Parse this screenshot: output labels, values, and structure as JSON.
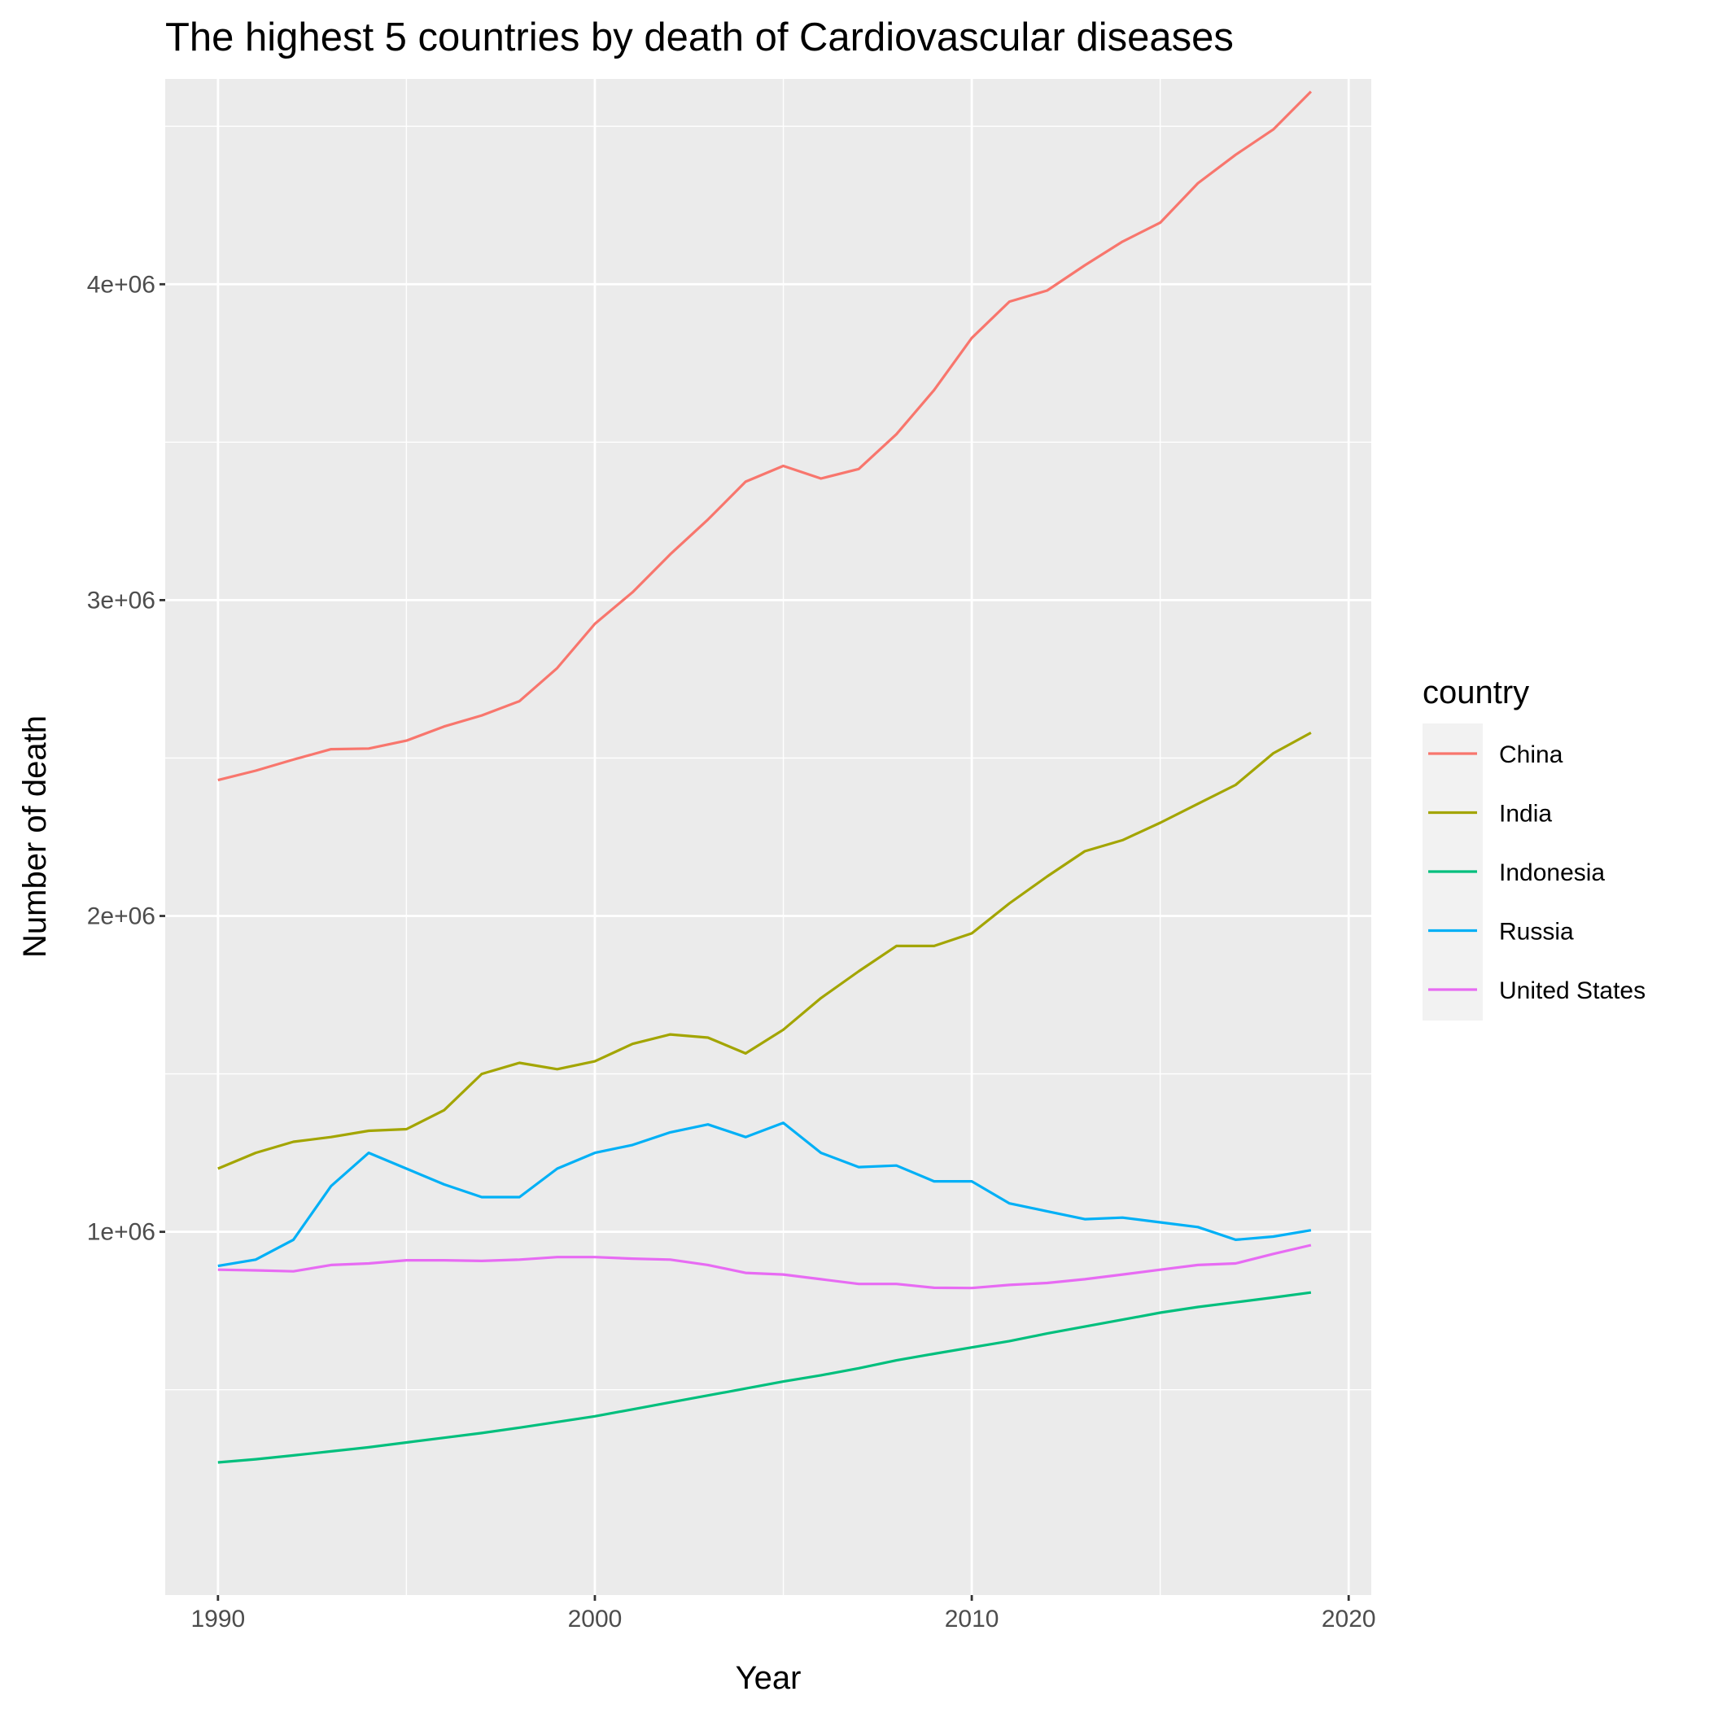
{
  "chart_data": {
    "type": "line",
    "title": "The highest 5 countries by death of Cardiovascular diseases",
    "xlabel": "Year",
    "ylabel": "Number of death",
    "x": [
      1990,
      1991,
      1992,
      1993,
      1994,
      1995,
      1996,
      1997,
      1998,
      1999,
      2000,
      2001,
      2002,
      2003,
      2004,
      2005,
      2006,
      2007,
      2008,
      2009,
      2010,
      2011,
      2012,
      2013,
      2014,
      2015,
      2016,
      2017,
      2018,
      2019
    ],
    "xlim": [
      1988.6,
      2020.6
    ],
    "ylim": [
      -150000,
      4650000
    ],
    "x_ticks": [
      {
        "value": 1990,
        "label": "1990"
      },
      {
        "value": 2000,
        "label": "2000"
      },
      {
        "value": 2010,
        "label": "2010"
      },
      {
        "value": 2020,
        "label": "2020"
      }
    ],
    "y_ticks": [
      {
        "value": 1000000,
        "label": "1e+06"
      },
      {
        "value": 2000000,
        "label": "2e+06"
      },
      {
        "value": 3000000,
        "label": "3e+06"
      },
      {
        "value": 4000000,
        "label": "4e+06"
      }
    ],
    "y_minor_ticks": [
      500000,
      1500000,
      2500000,
      3500000,
      4500000
    ],
    "x_minor_ticks": [
      1995,
      2005,
      2015
    ],
    "grid": true,
    "legend": {
      "title": "country",
      "position": "right"
    },
    "series": [
      {
        "name": "China",
        "color": "#F8766D",
        "values": [
          2430000,
          2460000,
          2495000,
          2528000,
          2530000,
          2555000,
          2600000,
          2635000,
          2680000,
          2785000,
          2925000,
          3025000,
          3145000,
          3255000,
          3375000,
          3425000,
          3385000,
          3415000,
          3525000,
          3665000,
          3830000,
          3945000,
          3980000,
          4060000,
          4135000,
          4195000,
          4320000,
          4410000,
          4490000,
          4610000
        ]
      },
      {
        "name": "India",
        "color": "#A3A500",
        "values": [
          1200000,
          1250000,
          1285000,
          1300000,
          1320000,
          1325000,
          1385000,
          1500000,
          1535000,
          1515000,
          1540000,
          1595000,
          1625000,
          1615000,
          1565000,
          1640000,
          1740000,
          1825000,
          1905000,
          1905000,
          1945000,
          2040000,
          2125000,
          2205000,
          2240000,
          2295000,
          2355000,
          2415000,
          2515000,
          2580000
        ]
      },
      {
        "name": "Indonesia",
        "color": "#00BF7D",
        "values": [
          270000,
          280000,
          292000,
          305000,
          318000,
          333000,
          348000,
          363000,
          380000,
          398000,
          416000,
          438000,
          460000,
          482000,
          504000,
          526000,
          546000,
          568000,
          593000,
          614000,
          634000,
          654000,
          678000,
          700000,
          722000,
          744000,
          762000,
          777000,
          792000,
          808000
        ]
      },
      {
        "name": "Russia",
        "color": "#00B0F6",
        "values": [
          892000,
          912000,
          975000,
          1145000,
          1250000,
          1200000,
          1150000,
          1110000,
          1110000,
          1200000,
          1250000,
          1275000,
          1315000,
          1340000,
          1300000,
          1345000,
          1250000,
          1205000,
          1210000,
          1160000,
          1160000,
          1090000,
          1065000,
          1040000,
          1045000,
          1030000,
          1015000,
          975000,
          985000,
          1005000
        ]
      },
      {
        "name": "United States",
        "color": "#E76BF3",
        "values": [
          880000,
          878000,
          875000,
          895000,
          900000,
          910000,
          910000,
          908000,
          912000,
          920000,
          920000,
          915000,
          912000,
          895000,
          870000,
          865000,
          850000,
          835000,
          835000,
          823000,
          822000,
          832000,
          838000,
          850000,
          865000,
          880000,
          895000,
          900000,
          930000,
          958000
        ]
      }
    ]
  }
}
